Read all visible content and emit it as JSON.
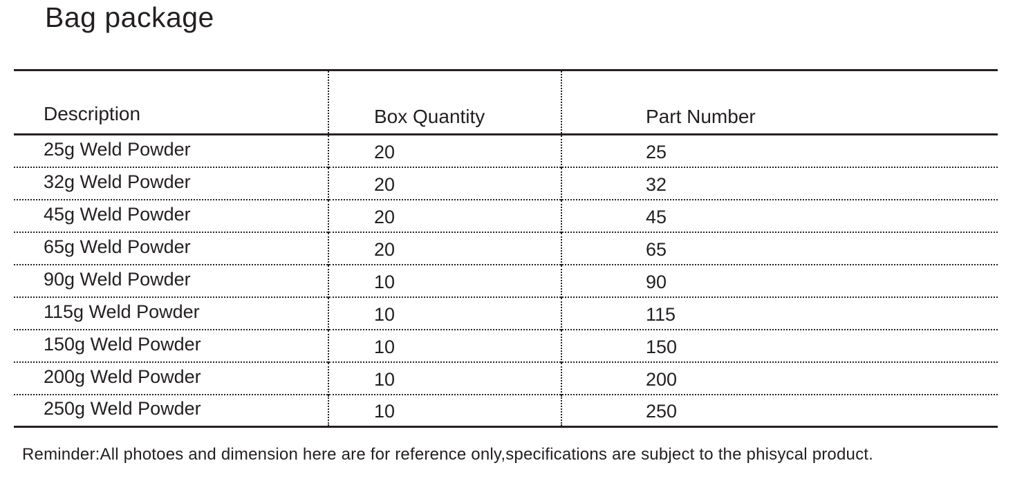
{
  "title": "Bag package",
  "table": {
    "headers": {
      "description": "Description",
      "box_quantity": "Box Quantity",
      "part_number": "Part Number"
    },
    "rows": [
      {
        "description": "25g Weld Powder",
        "box_quantity": "20",
        "part_number": "25"
      },
      {
        "description": "32g Weld Powder",
        "box_quantity": "20",
        "part_number": "32"
      },
      {
        "description": "45g Weld Powder",
        "box_quantity": "20",
        "part_number": "45"
      },
      {
        "description": "65g Weld Powder",
        "box_quantity": "20",
        "part_number": "65"
      },
      {
        "description": "90g Weld Powder",
        "box_quantity": "10",
        "part_number": "90"
      },
      {
        "description": "115g Weld Powder",
        "box_quantity": "10",
        "part_number": "115"
      },
      {
        "description": "150g Weld Powder",
        "box_quantity": "10",
        "part_number": "150"
      },
      {
        "description": "200g Weld Powder",
        "box_quantity": "10",
        "part_number": "200"
      },
      {
        "description": "250g Weld Powder",
        "box_quantity": "10",
        "part_number": "250"
      }
    ]
  },
  "footer": {
    "reminder": "Reminder:All photoes and dimension here are for reference only,specifications are subject to the phisycal product."
  },
  "colors": {
    "text": "#231f20",
    "line": "#231f20",
    "background": "#ffffff"
  }
}
